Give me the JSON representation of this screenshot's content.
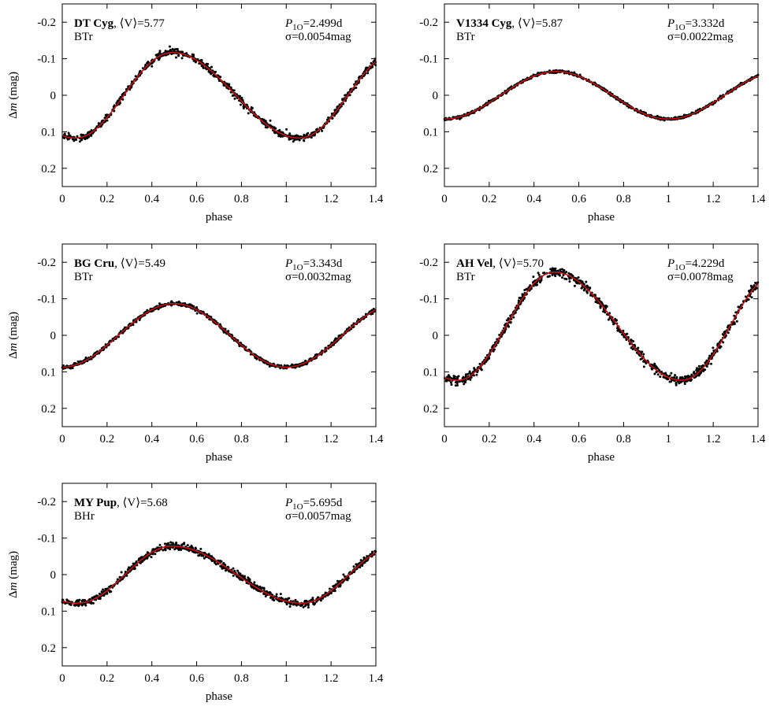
{
  "figure": {
    "xlabel": "phase",
    "ylabel_prefix": "Δ",
    "ylabel_var": "m",
    "ylabel_unit": " (mag)",
    "period_symbol": "P",
    "period_subscript": "1O",
    "mean_mag_label": ", ⟨V⟩="
  },
  "colors": {
    "points": "#000000",
    "fit": "#cc1111",
    "axes": "#000000"
  },
  "chart_data": [
    {
      "type": "scatter",
      "star": "DT Cyg",
      "mean_V": "5.77",
      "period": "2.499d",
      "sigma_text": "σ=0.0054mag",
      "mode": "BTr",
      "xlim": [
        0,
        1.4
      ],
      "ylim": [
        -0.25,
        0.25
      ],
      "y_inverted": true,
      "xticks": [
        "0",
        "0.2",
        "0.4",
        "0.6",
        "0.8",
        "1",
        "1.2",
        "1.4"
      ],
      "yticks": [
        "-0.2",
        "-0.1",
        "0",
        "0.1",
        "0.2"
      ],
      "show_ylabel": true,
      "fit": {
        "mean": 0.0,
        "amplitude": 0.117,
        "peak_phase": 0.49,
        "rise_fraction": 0.43,
        "skew": 0.55
      },
      "series": [
        {
          "type": "scatter",
          "scatter_sigma": 0.0054
        },
        {
          "type": "line"
        }
      ]
    },
    {
      "type": "scatter",
      "star": "V1334 Cyg",
      "mean_V": "5.87",
      "period": "3.332d",
      "sigma_text": "σ=0.0022mag",
      "mode": "BTr",
      "xlim": [
        0,
        1.4
      ],
      "ylim": [
        -0.25,
        0.25
      ],
      "y_inverted": true,
      "xticks": [
        "0",
        "0.2",
        "0.4",
        "0.6",
        "0.8",
        "1",
        "1.2",
        "1.4"
      ],
      "yticks": [
        "-0.2",
        "-0.1",
        "0",
        "0.1",
        "0.2"
      ],
      "show_ylabel": false,
      "fit": {
        "mean": 0.0,
        "amplitude": 0.065,
        "peak_phase": 0.5,
        "rise_fraction": 0.5,
        "skew": 0.0
      },
      "series": [
        {
          "type": "scatter",
          "scatter_sigma": 0.0022
        },
        {
          "type": "line"
        }
      ]
    },
    {
      "type": "scatter",
      "star": "BG Cru",
      "mean_V": "5.49",
      "period": "3.343d",
      "sigma_text": "σ=0.0032mag",
      "mode": "BTr",
      "xlim": [
        0,
        1.4
      ],
      "ylim": [
        -0.25,
        0.25
      ],
      "y_inverted": true,
      "xticks": [
        "0",
        "0.2",
        "0.4",
        "0.6",
        "0.8",
        "1",
        "1.2",
        "1.4"
      ],
      "yticks": [
        "-0.2",
        "-0.1",
        "0",
        "0.1",
        "0.2"
      ],
      "show_ylabel": true,
      "fit": {
        "mean": 0.0,
        "amplitude": 0.087,
        "peak_phase": 0.5,
        "rise_fraction": 0.5,
        "skew": 0.0
      },
      "series": [
        {
          "type": "scatter",
          "scatter_sigma": 0.0032
        },
        {
          "type": "line"
        }
      ]
    },
    {
      "type": "scatter",
      "star": "AH Vel",
      "mean_V": "5.70",
      "period": "4.229d",
      "sigma_text": "σ=0.0078mag",
      "mode": "BTr",
      "xlim": [
        0,
        1.4
      ],
      "ylim": [
        -0.25,
        0.25
      ],
      "y_inverted": true,
      "xticks": [
        "0",
        "0.2",
        "0.4",
        "0.6",
        "0.8",
        "1",
        "1.2",
        "1.4"
      ],
      "yticks": [
        "-0.2",
        "-0.1",
        "0",
        "0.1",
        "0.2"
      ],
      "show_ylabel": false,
      "fit": {
        "mean": -0.025,
        "amplitude": 0.148,
        "peak_phase": 0.49,
        "rise_fraction": 0.43,
        "skew": 0.45
      },
      "series": [
        {
          "type": "scatter",
          "scatter_sigma": 0.0078
        },
        {
          "type": "line"
        }
      ]
    },
    {
      "type": "scatter",
      "star": "MY Pup",
      "mean_V": "5.68",
      "period": "5.695d",
      "sigma_text": "σ=0.0057mag",
      "mode": "BHr",
      "xlim": [
        0,
        1.4
      ],
      "ylim": [
        -0.25,
        0.25
      ],
      "y_inverted": true,
      "xticks": [
        "0",
        "0.2",
        "0.4",
        "0.6",
        "0.8",
        "1",
        "1.2",
        "1.4"
      ],
      "yticks": [
        "-0.2",
        "-0.1",
        "0",
        "0.1",
        "0.2"
      ],
      "show_ylabel": true,
      "fit": {
        "mean": 0.0,
        "amplitude": 0.078,
        "peak_phase": 0.49,
        "rise_fraction": 0.42,
        "skew": 0.4
      },
      "series": [
        {
          "type": "scatter",
          "scatter_sigma": 0.0057
        },
        {
          "type": "line"
        }
      ]
    }
  ]
}
